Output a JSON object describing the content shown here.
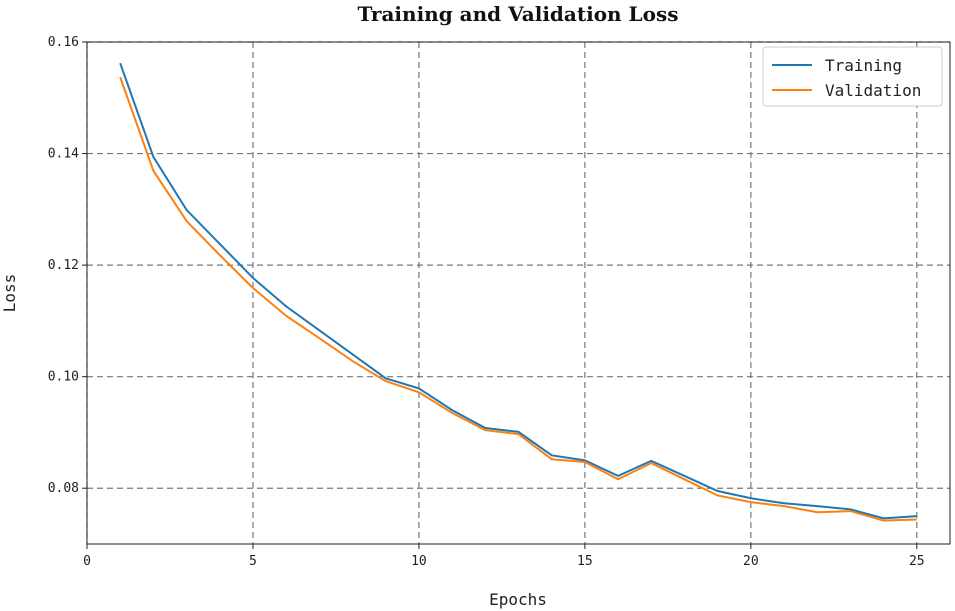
{
  "chart_data": {
    "type": "line",
    "title": "Training and Validation Loss",
    "xlabel": "Epochs",
    "ylabel": "Loss",
    "xlim": [
      0,
      26
    ],
    "ylim": [
      0.07,
      0.16
    ],
    "xticks": [
      0,
      5,
      10,
      15,
      20,
      25
    ],
    "yticks": [
      0.08,
      0.1,
      0.12,
      0.14,
      0.16
    ],
    "ytick_labels": [
      "0.08",
      "0.10",
      "0.12",
      "0.14",
      "0.16"
    ],
    "grid": true,
    "legend_position": "top-right",
    "x": [
      1,
      2,
      3,
      4,
      5,
      6,
      7,
      8,
      9,
      10,
      11,
      12,
      13,
      14,
      15,
      16,
      17,
      18,
      19,
      20,
      21,
      22,
      23,
      24,
      25
    ],
    "series": [
      {
        "name": "Training",
        "color": "#1f77b4",
        "values": [
          0.1562,
          0.1394,
          0.1299,
          0.1238,
          0.1177,
          0.1126,
          0.1083,
          0.104,
          0.0997,
          0.0979,
          0.094,
          0.0908,
          0.0901,
          0.0859,
          0.085,
          0.0822,
          0.0849,
          0.0822,
          0.0795,
          0.0782,
          0.0773,
          0.0768,
          0.0762,
          0.0746,
          0.075
        ]
      },
      {
        "name": "Validation",
        "color": "#ff7f0e",
        "values": [
          0.1537,
          0.1369,
          0.1279,
          0.1218,
          0.1159,
          0.1109,
          0.1069,
          0.1028,
          0.0992,
          0.0972,
          0.0935,
          0.0904,
          0.0897,
          0.0852,
          0.0847,
          0.0816,
          0.0845,
          0.0816,
          0.0787,
          0.0775,
          0.0768,
          0.0757,
          0.0759,
          0.0742,
          0.0744
        ]
      }
    ]
  }
}
